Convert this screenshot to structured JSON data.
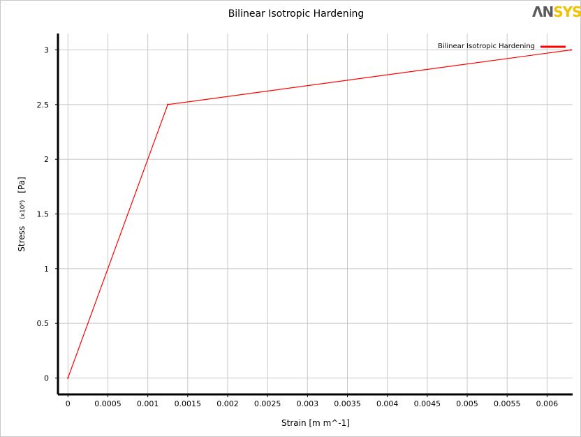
{
  "chart_data": {
    "type": "line",
    "title": "Bilinear Isotropic Hardening",
    "xlabel": "Strain  [m m^-1]",
    "ylabel_prefix": "Stress",
    "ylabel_scale": "(x10⁸)",
    "ylabel_unit": "[Pa]",
    "x_ticks": [
      "0",
      "0.0005",
      "0.001",
      "0.0015",
      "0.002",
      "0.0025",
      "0.003",
      "0.0035",
      "0.004",
      "0.0045",
      "0.005",
      "0.0055",
      "0.006"
    ],
    "y_ticks": [
      "0",
      "0.5",
      "1",
      "1.5",
      "2",
      "2.5",
      "3"
    ],
    "xlim": [
      -0.000125,
      0.00632
    ],
    "ylim": [
      -0.15,
      3.15
    ],
    "grid": true,
    "legend_position": "top-right",
    "series": [
      {
        "name": "Bilinear Isotropic Hardening",
        "color": "#ff0000",
        "x": [
          0,
          0.00125,
          0.0063
        ],
        "y": [
          0,
          2.5,
          3.0
        ]
      }
    ]
  },
  "logo": {
    "text_part1": "ΛN",
    "text_part2": "SYS",
    "color1": "#5a5a5a",
    "color2": "#f2c100"
  }
}
